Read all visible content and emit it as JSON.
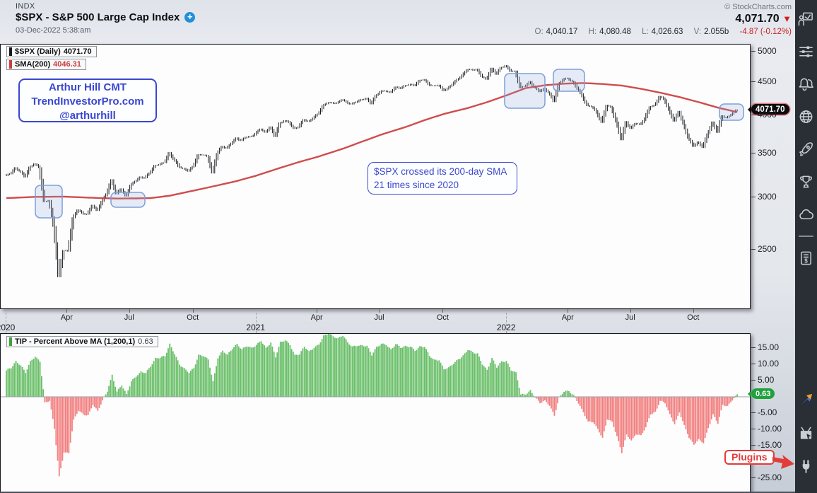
{
  "header": {
    "exchange": "INDX",
    "title": "$SPX - S&P 500 Large Cap Index",
    "plus": "+",
    "timestamp": "03-Dec-2022 5:38:am",
    "copyright": "© StockCharts.com",
    "last_price": "4,071.70",
    "down_arrow": "▼",
    "ohlc": {
      "o_label": "O:",
      "o": "4,040.17",
      "h_label": "H:",
      "h": "4,080.48",
      "l_label": "L:",
      "l": "4,026.63",
      "v_label": "V:",
      "v": "2.055b",
      "change": "-4.87 (-0.12%)"
    }
  },
  "main_chart": {
    "legend1": {
      "label": "$SPX (Daily)",
      "value": "4071.70"
    },
    "legend2": {
      "label": "SMA(200)",
      "value": "4046.31"
    },
    "price_tag": "4071.70",
    "author_note": [
      "Arthur Hill CMT",
      "TrendInvestorPro.com",
      "@arthurhill"
    ],
    "cross_note": [
      "$SPX crossed its 200-day SMA",
      "21 times since 2020"
    ]
  },
  "indicator": {
    "legend_label": "TIP - Percent Above MA (1,200,1)",
    "legend_value": "0.63",
    "value_tag": "0.63"
  },
  "plugins": {
    "label": "Plugins"
  },
  "sidebar": {
    "icons": [
      "presentation-icon",
      "sliders-icon",
      "alerts-bells-icon",
      "globe-icon",
      "rocket-icon",
      "trophy-icon",
      "cloud-icon",
      "invoice-icon",
      "partner-logo-icon",
      "tv-ad-icon",
      "plug-icon"
    ]
  },
  "colors": {
    "sma_red": "#cc3d3d",
    "bar_black": "#17191c",
    "osc_green": "#6abf69",
    "osc_green_edge": "#4ea34d",
    "osc_red": "#f28080",
    "osc_red_edge": "#e26b6b",
    "annotation_blue": "#3a47cf",
    "highlight_border": "#7e9fd8",
    "tag_green": "#1fa23d",
    "negative_red": "#cc2121"
  },
  "chart_data": [
    {
      "type": "ohlc-bar",
      "title": "$SPX - S&P 500 Large Cap Index (Daily) with SMA(200)",
      "y_scale": "log",
      "ylim": [
        2030,
        5100
      ],
      "y_ticks": [
        5000,
        4500,
        4000,
        3500,
        3000,
        2500
      ],
      "x_years": [
        {
          "label": "2020",
          "week": 0
        },
        {
          "label": "2021",
          "week": 52.0
        },
        {
          "label": "2022",
          "week": 104.1
        }
      ],
      "x_months": [
        {
          "label": "Apr",
          "week": 12.7
        },
        {
          "label": "Jul",
          "week": 25.7
        },
        {
          "label": "Oct",
          "week": 38.9
        },
        {
          "label": "Apr",
          "week": 64.7
        },
        {
          "label": "Jul",
          "week": 77.7
        },
        {
          "label": "Oct",
          "week": 90.9
        },
        {
          "label": "Apr",
          "week": 116.9
        },
        {
          "label": "Jul",
          "week": 129.9
        },
        {
          "label": "Oct",
          "week": 143.0
        }
      ],
      "frequency": "weekly (approx closes, Jan 2020 - 02 Dec 2022)",
      "weekly_close": [
        3235,
        3265,
        3330,
        3295,
        3225,
        3328,
        3380,
        3338,
        2954,
        2972,
        2711,
        2270,
        2500,
        2489,
        2790,
        2875,
        2837,
        2831,
        2930,
        2864,
        2955,
        3044,
        3194,
        3041,
        3098,
        3009,
        3130,
        3185,
        3225,
        3216,
        3271,
        3351,
        3373,
        3397,
        3508,
        3427,
        3341,
        3319,
        3298,
        3348,
        3477,
        3484,
        3465,
        3270,
        3509,
        3585,
        3558,
        3638,
        3699,
        3663,
        3709,
        3703,
        3756,
        3825,
        3768,
        3841,
        3714,
        3887,
        3935,
        3907,
        3811,
        3842,
        3943,
        3913,
        3975,
        4020,
        4129,
        4185,
        4180,
        4181,
        4233,
        4174,
        4156,
        4204,
        4230,
        4247,
        4166,
        4281,
        4352,
        4370,
        4327,
        4412,
        4395,
        4437,
        4468,
        4442,
        4509,
        4535,
        4459,
        4433,
        4455,
        4357,
        4391,
        4471,
        4545,
        4605,
        4698,
        4683,
        4698,
        4595,
        4538,
        4712,
        4621,
        4726,
        4766,
        4677,
        4663,
        4398,
        4432,
        4501,
        4419,
        4349,
        4385,
        4329,
        4204,
        4463,
        4543,
        4546,
        4488,
        4393,
        4272,
        4132,
        4123,
        4024,
        3901,
        4158,
        4109,
        3901,
        3675,
        3912,
        3825,
        3899,
        3863,
        3962,
        4130,
        4145,
        4280,
        4228,
        4058,
        3924,
        4067,
        3873,
        3693,
        3586,
        3640,
        3583,
        3753,
        3901,
        3771,
        3993,
        3965,
        4026,
        4071.7
      ],
      "sma200_anchors": [
        [
          0,
          2995
        ],
        [
          6,
          3008
        ],
        [
          12,
          3010
        ],
        [
          18,
          2998
        ],
        [
          23,
          2990
        ],
        [
          27,
          2992
        ],
        [
          30,
          2995
        ],
        [
          34,
          3020
        ],
        [
          39,
          3075
        ],
        [
          43,
          3120
        ],
        [
          48,
          3180
        ],
        [
          52,
          3240
        ],
        [
          57,
          3330
        ],
        [
          61,
          3400
        ],
        [
          65,
          3465
        ],
        [
          70,
          3560
        ],
        [
          74,
          3650
        ],
        [
          78,
          3740
        ],
        [
          83,
          3840
        ],
        [
          87,
          3935
        ],
        [
          91,
          4020
        ],
        [
          96,
          4105
        ],
        [
          100,
          4190
        ],
        [
          104,
          4290
        ],
        [
          108,
          4400
        ],
        [
          112,
          4445
        ],
        [
          116,
          4470
        ],
        [
          120,
          4480
        ],
        [
          124,
          4465
        ],
        [
          128,
          4440
        ],
        [
          132,
          4390
        ],
        [
          136,
          4330
        ],
        [
          140,
          4265
        ],
        [
          144,
          4190
        ],
        [
          148,
          4110
        ],
        [
          152,
          4046.31
        ]
      ],
      "last_close": 4071.7,
      "last_sma200": 4046.31,
      "highlight_regions": [
        {
          "x": 49,
          "y": 199,
          "w": 38,
          "h": 46
        },
        {
          "x": 156,
          "y": 209,
          "w": 48,
          "h": 21
        },
        {
          "x": 713,
          "y": 41,
          "w": 57,
          "h": 49
        },
        {
          "x": 782,
          "y": 35,
          "w": 44,
          "h": 31
        },
        {
          "x": 1017,
          "y": 84,
          "w": 34,
          "h": 23
        }
      ]
    },
    {
      "type": "bar",
      "title": "TIP - Percent Above MA (1,200,1)",
      "derived_from": "(weekly_close / sma200 - 1) * 100",
      "y_ticks": [
        15,
        10,
        5,
        -5,
        -10,
        -15,
        -25
      ],
      "ylim": [
        -30,
        19
      ],
      "zero_line": 0,
      "last_value": 0.63
    }
  ]
}
